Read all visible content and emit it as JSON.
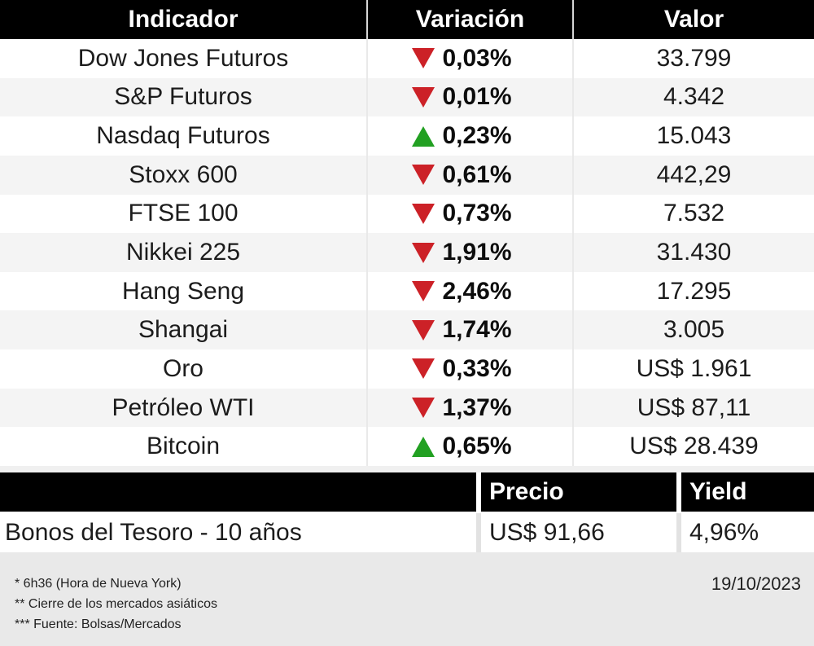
{
  "colors": {
    "down-red": "#cc2127",
    "up-green": "#22a022"
  },
  "main_table": {
    "headers": {
      "indicator": "Indicador",
      "variation": "Variación",
      "value": "Valor"
    },
    "rows": [
      {
        "indicator": "Dow Jones Futuros",
        "direction": "down",
        "variation": "0,03%",
        "value": "33.799"
      },
      {
        "indicator": "S&P Futuros",
        "direction": "down",
        "variation": "0,01%",
        "value": "4.342"
      },
      {
        "indicator": "Nasdaq Futuros",
        "direction": "up",
        "variation": "0,23%",
        "value": "15.043"
      },
      {
        "indicator": "Stoxx 600",
        "direction": "down",
        "variation": "0,61%",
        "value": "442,29"
      },
      {
        "indicator": "FTSE 100",
        "direction": "down",
        "variation": "0,73%",
        "value": "7.532"
      },
      {
        "indicator": "Nikkei 225",
        "direction": "down",
        "variation": "1,91%",
        "value": "31.430"
      },
      {
        "indicator": "Hang Seng",
        "direction": "down",
        "variation": "2,46%",
        "value": "17.295"
      },
      {
        "indicator": "Shangai",
        "direction": "down",
        "variation": "1,74%",
        "value": "3.005"
      },
      {
        "indicator": "Oro",
        "direction": "down",
        "variation": "0,33%",
        "value": "US$ 1.961"
      },
      {
        "indicator": "Petróleo WTI",
        "direction": "down",
        "variation": "1,37%",
        "value": "US$ 87,11"
      },
      {
        "indicator": "Bitcoin",
        "direction": "up",
        "variation": "0,65%",
        "value": "US$ 28.439"
      }
    ]
  },
  "bonds_table": {
    "headers": {
      "name": "",
      "price": "Precio",
      "yield": "Yield"
    },
    "rows": [
      {
        "name": "Bonos del Tesoro - 10 años",
        "price": "US$ 91,66",
        "yield": "4,96%"
      }
    ]
  },
  "footer": {
    "notes": [
      "* 6h36 (Hora de Nueva York)",
      "** Cierre de los mercados asiáticos",
      "*** Fuente: Bolsas/Mercados"
    ],
    "date": "19/10/2023"
  },
  "chart_data": [
    {
      "type": "table",
      "columns": [
        "Indicador",
        "Variación",
        "Valor"
      ],
      "rows": [
        {
          "indicator": "Dow Jones Futuros",
          "variation_pct": -0.03,
          "value": 33799,
          "value_display": "33.799"
        },
        {
          "indicator": "S&P Futuros",
          "variation_pct": -0.01,
          "value": 4342,
          "value_display": "4.342"
        },
        {
          "indicator": "Nasdaq Futuros",
          "variation_pct": 0.23,
          "value": 15043,
          "value_display": "15.043"
        },
        {
          "indicator": "Stoxx 600",
          "variation_pct": -0.61,
          "value": 442.29,
          "value_display": "442,29"
        },
        {
          "indicator": "FTSE 100",
          "variation_pct": -0.73,
          "value": 7532,
          "value_display": "7.532"
        },
        {
          "indicator": "Nikkei 225",
          "variation_pct": -1.91,
          "value": 31430,
          "value_display": "31.430"
        },
        {
          "indicator": "Hang Seng",
          "variation_pct": -2.46,
          "value": 17295,
          "value_display": "17.295"
        },
        {
          "indicator": "Shangai",
          "variation_pct": -1.74,
          "value": 3005,
          "value_display": "3.005"
        },
        {
          "indicator": "Oro",
          "variation_pct": -0.33,
          "value": 1961,
          "value_display": "US$ 1.961"
        },
        {
          "indicator": "Petróleo WTI",
          "variation_pct": -1.37,
          "value": 87.11,
          "value_display": "US$ 87,11"
        },
        {
          "indicator": "Bitcoin",
          "variation_pct": 0.65,
          "value": 28439,
          "value_display": "US$ 28.439"
        }
      ]
    },
    {
      "type": "table",
      "columns": [
        "",
        "Precio",
        "Yield"
      ],
      "rows": [
        {
          "name": "Bonos del Tesoro - 10 años",
          "price": 91.66,
          "price_display": "US$ 91,66",
          "yield_pct": 4.96,
          "yield_display": "4,96%"
        }
      ]
    }
  ]
}
